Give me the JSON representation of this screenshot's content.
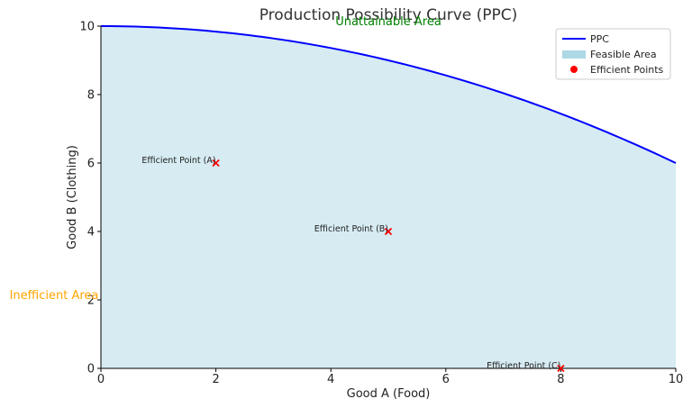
{
  "chart_data": {
    "type": "line",
    "title": "Production Possibility Curve (PPC)",
    "xlabel": "Good A (Food)",
    "ylabel": "Good B (Clothing)",
    "xlim": [
      0,
      10
    ],
    "ylim": [
      0,
      10
    ],
    "xticks": [
      "0",
      "2",
      "4",
      "6",
      "8",
      "10"
    ],
    "yticks": [
      "0",
      "2",
      "4",
      "6",
      "8",
      "10"
    ],
    "grid": false,
    "legend_position": "top-right",
    "series": [
      {
        "name": "PPC",
        "kind": "line",
        "color": "#0000ff",
        "x": [
          0,
          1,
          2,
          3,
          4,
          5,
          6,
          7,
          8,
          9,
          10
        ],
        "y": [
          10,
          9.96,
          9.84,
          9.64,
          9.36,
          9,
          8.56,
          8.04,
          7.44,
          6.76,
          6
        ]
      },
      {
        "name": "Feasible Area",
        "kind": "area",
        "color": "#add8e6"
      },
      {
        "name": "Efficient Points",
        "kind": "scatter",
        "color": "#ff0000",
        "points": [
          {
            "x": 2,
            "y": 6,
            "label": "Efficient Point (A)"
          },
          {
            "x": 5,
            "y": 4,
            "label": "Efficient Point (B)"
          },
          {
            "x": 8,
            "y": 0,
            "label": "Efficient Point (C)"
          }
        ]
      }
    ],
    "annotations": [
      {
        "text": "Unattainable Area",
        "color": "#008000"
      },
      {
        "text": "Inefficient Area",
        "color": "#ffa500"
      }
    ]
  }
}
